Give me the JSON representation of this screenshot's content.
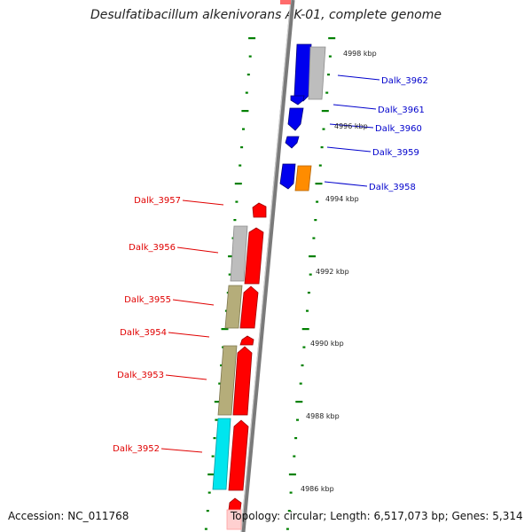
{
  "title": "Desulfatibacillum alkenivorans AK-01, complete genome",
  "footer": {
    "accession": "Accession: NC_011768",
    "summary": "Topology: circular; Length: 6,517,073 bp; Genes: 5,314"
  },
  "colors": {
    "red_gene": "#ff0000",
    "blue_gene": "#0000ee",
    "gray_gene": "#bdbdbd",
    "khaki_gene": "#b5ad7a",
    "cyan_gene": "#00e5ee",
    "orange_gene": "#ff8c00",
    "tick_green": "#008000",
    "label_left": "#e00000",
    "label_right": "#0000cc"
  },
  "kbp_labels": [
    "4998 kbp",
    "4996 kbp",
    "4994 kbp",
    "4992 kbp",
    "4990 kbp",
    "4988 kbp",
    "4986 kbp"
  ],
  "genes_left": [
    "Dalk_3957",
    "Dalk_3956",
    "Dalk_3955",
    "Dalk_3954",
    "Dalk_3953",
    "Dalk_3952"
  ],
  "genes_right": [
    "Dalk_3962",
    "Dalk_3961",
    "Dalk_3960",
    "Dalk_3959",
    "Dalk_3958"
  ]
}
